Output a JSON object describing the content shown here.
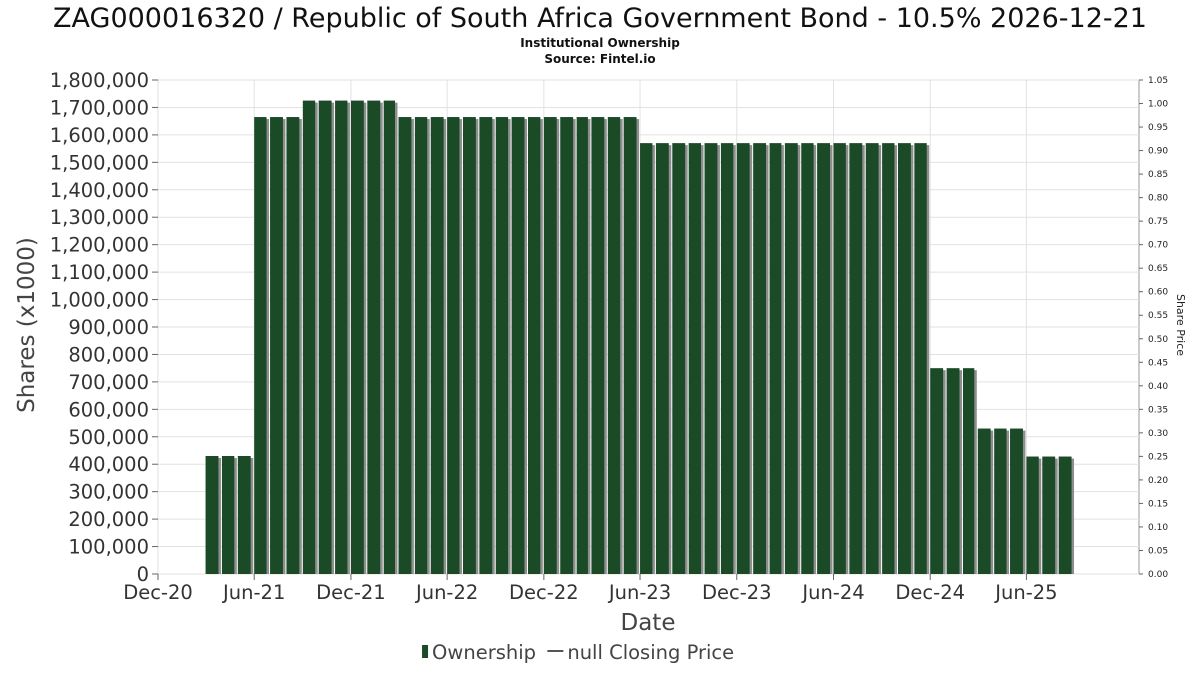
{
  "chart_data": {
    "type": "bar",
    "title": "ZAG000016320 / Republic of South Africa Government Bond - 10.5% 2026-12-21",
    "subtitle": "Institutional Ownership",
    "source": "Source: Fintel.io",
    "xlabel": "Date",
    "ylabel": "Shares (x1000)",
    "y2label": "Share Price",
    "ylim": [
      0,
      1800000
    ],
    "y2lim": [
      0,
      1.05
    ],
    "y_ticks": [
      "0",
      "100,000",
      "200,000",
      "300,000",
      "400,000",
      "500,000",
      "600,000",
      "700,000",
      "800,000",
      "900,000",
      "1,000,000",
      "1,100,000",
      "1,200,000",
      "1,300,000",
      "1,400,000",
      "1,500,000",
      "1,600,000",
      "1,700,000",
      "1,800,000"
    ],
    "y2_ticks": [
      "0.00",
      "0.05",
      "0.10",
      "0.15",
      "0.20",
      "0.25",
      "0.30",
      "0.35",
      "0.40",
      "0.45",
      "0.50",
      "0.55",
      "0.60",
      "0.65",
      "0.70",
      "0.75",
      "0.80",
      "0.85",
      "0.90",
      "0.95",
      "1.00",
      "1.05"
    ],
    "x_ticks": [
      {
        "label": "Dec-20",
        "date": "2020-12-01"
      },
      {
        "label": "Jun-21",
        "date": "2021-06-01"
      },
      {
        "label": "Dec-21",
        "date": "2021-12-01"
      },
      {
        "label": "Jun-22",
        "date": "2022-06-01"
      },
      {
        "label": "Dec-22",
        "date": "2022-12-01"
      },
      {
        "label": "Jun-23",
        "date": "2023-06-01"
      },
      {
        "label": "Dec-23",
        "date": "2023-12-01"
      },
      {
        "label": "Jun-24",
        "date": "2024-06-01"
      },
      {
        "label": "Dec-24",
        "date": "2024-12-01"
      },
      {
        "label": "Jun-25",
        "date": "2025-06-01"
      }
    ],
    "x_range": [
      "2020-12-01",
      "2025-12-31"
    ],
    "grid": true,
    "legend_position": "bottom",
    "series": [
      {
        "name": "Ownership",
        "color": "#1b4a26",
        "points": [
          {
            "date": "2021-03-01",
            "value": 430000
          },
          {
            "date": "2021-04-01",
            "value": 430000
          },
          {
            "date": "2021-05-01",
            "value": 430000
          },
          {
            "date": "2021-06-01",
            "value": 1665000
          },
          {
            "date": "2021-07-01",
            "value": 1665000
          },
          {
            "date": "2021-08-01",
            "value": 1665000
          },
          {
            "date": "2021-09-01",
            "value": 1725000
          },
          {
            "date": "2021-10-01",
            "value": 1725000
          },
          {
            "date": "2021-11-01",
            "value": 1725000
          },
          {
            "date": "2021-12-01",
            "value": 1725000
          },
          {
            "date": "2022-01-01",
            "value": 1725000
          },
          {
            "date": "2022-02-01",
            "value": 1725000
          },
          {
            "date": "2022-03-01",
            "value": 1665000
          },
          {
            "date": "2022-04-01",
            "value": 1665000
          },
          {
            "date": "2022-05-01",
            "value": 1665000
          },
          {
            "date": "2022-06-01",
            "value": 1665000
          },
          {
            "date": "2022-07-01",
            "value": 1665000
          },
          {
            "date": "2022-08-01",
            "value": 1665000
          },
          {
            "date": "2022-09-01",
            "value": 1665000
          },
          {
            "date": "2022-10-01",
            "value": 1665000
          },
          {
            "date": "2022-11-01",
            "value": 1665000
          },
          {
            "date": "2022-12-01",
            "value": 1665000
          },
          {
            "date": "2023-01-01",
            "value": 1665000
          },
          {
            "date": "2023-02-01",
            "value": 1665000
          },
          {
            "date": "2023-03-01",
            "value": 1665000
          },
          {
            "date": "2023-04-01",
            "value": 1665000
          },
          {
            "date": "2023-05-01",
            "value": 1665000
          },
          {
            "date": "2023-06-01",
            "value": 1570000
          },
          {
            "date": "2023-07-01",
            "value": 1570000
          },
          {
            "date": "2023-08-01",
            "value": 1570000
          },
          {
            "date": "2023-09-01",
            "value": 1570000
          },
          {
            "date": "2023-10-01",
            "value": 1570000
          },
          {
            "date": "2023-11-01",
            "value": 1570000
          },
          {
            "date": "2023-12-01",
            "value": 1570000
          },
          {
            "date": "2024-01-01",
            "value": 1570000
          },
          {
            "date": "2024-02-01",
            "value": 1570000
          },
          {
            "date": "2024-03-01",
            "value": 1570000
          },
          {
            "date": "2024-04-01",
            "value": 1570000
          },
          {
            "date": "2024-05-01",
            "value": 1570000
          },
          {
            "date": "2024-06-01",
            "value": 1570000
          },
          {
            "date": "2024-07-01",
            "value": 1570000
          },
          {
            "date": "2024-08-01",
            "value": 1570000
          },
          {
            "date": "2024-09-01",
            "value": 1570000
          },
          {
            "date": "2024-10-01",
            "value": 1570000
          },
          {
            "date": "2024-11-01",
            "value": 1570000
          },
          {
            "date": "2024-12-01",
            "value": 750000
          },
          {
            "date": "2025-01-01",
            "value": 750000
          },
          {
            "date": "2025-02-01",
            "value": 750000
          },
          {
            "date": "2025-03-01",
            "value": 530000
          },
          {
            "date": "2025-04-01",
            "value": 530000
          },
          {
            "date": "2025-05-01",
            "value": 530000
          },
          {
            "date": "2025-06-01",
            "value": 428000
          },
          {
            "date": "2025-07-01",
            "value": 428000
          },
          {
            "date": "2025-08-01",
            "value": 428000
          }
        ]
      }
    ],
    "legend": [
      {
        "label": "Ownership",
        "color": "#1b4a26",
        "marker": "bar"
      },
      {
        "label": "null Closing Price",
        "color": "#555555",
        "marker": "line"
      }
    ]
  }
}
